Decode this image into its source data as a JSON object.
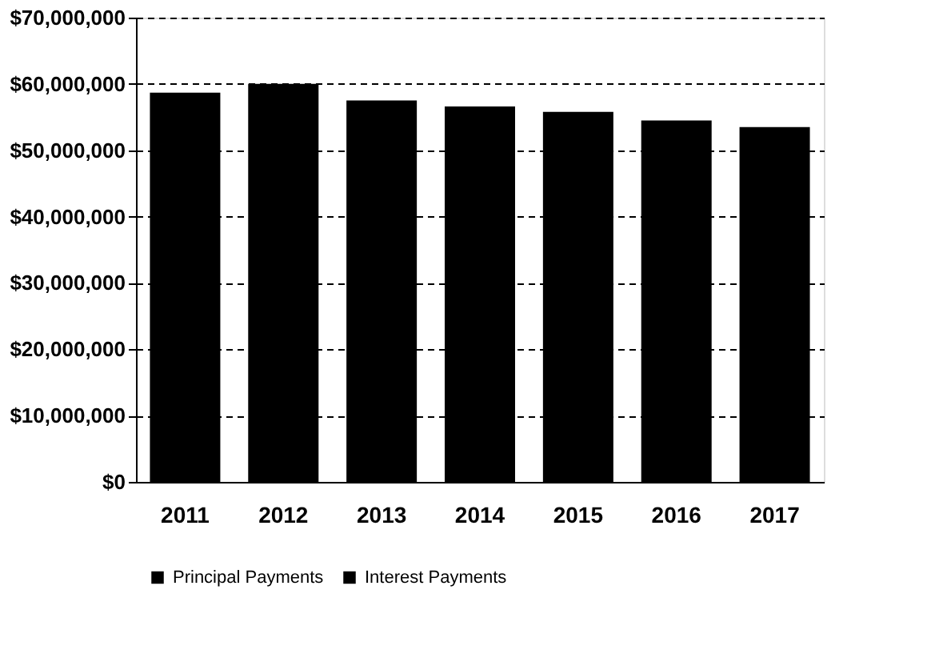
{
  "chart_data": {
    "type": "bar",
    "categories": [
      "2011",
      "2012",
      "2013",
      "2014",
      "2015",
      "2016",
      "2017"
    ],
    "series": [
      {
        "name": "Principal Payments",
        "color": "#000000",
        "values": [
          58700000,
          60000000,
          57500000,
          56600000,
          55800000,
          54500000,
          53500000
        ]
      },
      {
        "name": "Interest Payments",
        "color": "#000000",
        "values": [
          null,
          null,
          null,
          null,
          null,
          null,
          null
        ]
      }
    ],
    "ylim": [
      0,
      70000000
    ],
    "yticks": [
      {
        "value": 0,
        "label": "$0"
      },
      {
        "value": 10000000,
        "label": "$10,000,000"
      },
      {
        "value": 20000000,
        "label": "$20,000,000"
      },
      {
        "value": 30000000,
        "label": "$30,000,000"
      },
      {
        "value": 40000000,
        "label": "$40,000,000"
      },
      {
        "value": 50000000,
        "label": "$50,000,000"
      },
      {
        "value": 60000000,
        "label": "$60,000,000"
      },
      {
        "value": 70000000,
        "label": "$70,000,000"
      }
    ],
    "grid": "y",
    "legend": "bottom"
  }
}
